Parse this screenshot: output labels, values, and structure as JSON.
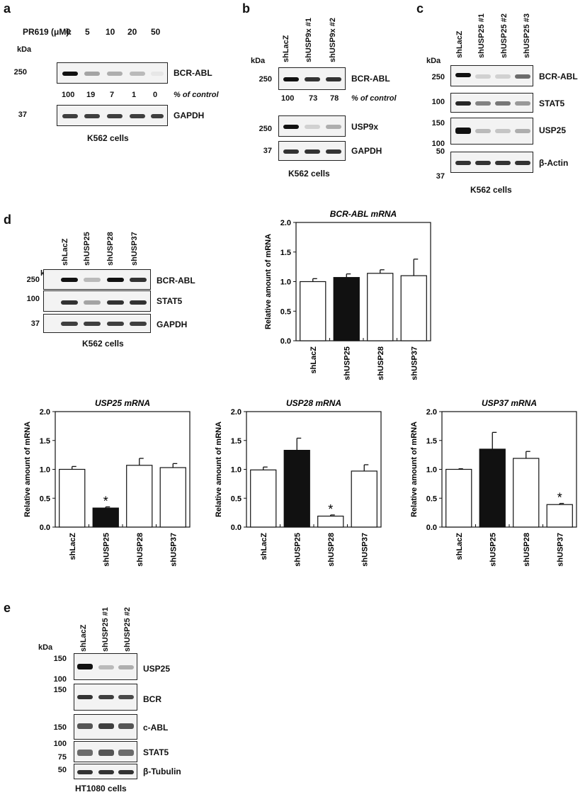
{
  "panels": {
    "a": {
      "letter": "a",
      "treatment_label": "PR619 (μM):",
      "doses": [
        "0",
        "5",
        "10",
        "20",
        "50"
      ],
      "kda": "kDa",
      "mw_top": "250",
      "mw_bottom": "37",
      "blot1": "BCR-ABL",
      "blot2": "GAPDH",
      "percent": [
        "100",
        "19",
        "7",
        "1",
        "0"
      ],
      "percent_label": "% of control",
      "band_intensity_top": [
        1.0,
        0.4,
        0.35,
        0.3,
        0.05
      ],
      "cells": "K562 cells"
    },
    "b": {
      "letter": "b",
      "lanes": [
        "shLacZ",
        "shUSP9x #1",
        "shUSP9x #2"
      ],
      "kda": "kDa",
      "blot1": "BCR-ABL",
      "blot2": "USP9x",
      "blot3": "GAPDH",
      "mw1": "250",
      "mw2": "250",
      "mw3": "37",
      "percent": [
        "100",
        "73",
        "78"
      ],
      "percent_label": "% of control",
      "cells": "K562 cells"
    },
    "c": {
      "letter": "c",
      "lanes": [
        "shLacZ",
        "shUSP25 #1",
        "shUSP25 #2",
        "shUSP25 #3"
      ],
      "kda": "kDa",
      "blot1": "BCR-ABL",
      "blot2": "STAT5",
      "blot3": "USP25",
      "blot4": "β-Actin",
      "mw1": "250",
      "mw2": "100",
      "mw3a": "150",
      "mw3b": "100",
      "mw4a": "50",
      "mw4b": "37",
      "cells": "K562 cells"
    },
    "d": {
      "letter": "d",
      "lanes": [
        "shLacZ",
        "shUSP25",
        "shUSP28",
        "shUSP37"
      ],
      "kda": "kDa",
      "blot1": "BCR-ABL",
      "blot2": "STAT5",
      "blot3": "GAPDH",
      "mw1": "250",
      "mw2": "100",
      "mw3": "37",
      "cells": "K562 cells"
    },
    "e": {
      "letter": "e",
      "lanes": [
        "shLacZ",
        "shUSP25 #1",
        "shUSP25 #2"
      ],
      "kda": "kDa",
      "blot1": "USP25",
      "blot2": "BCR",
      "blot3": "c-ABL",
      "blot4": "STAT5",
      "blot5": "β-Tubulin",
      "mw1a": "150",
      "mw1b": "100",
      "mw2": "150",
      "mw3": "150",
      "mw4a": "100",
      "mw4b": "75",
      "mw5": "50",
      "cells": "HT1080 cells"
    }
  },
  "chart_data": [
    {
      "type": "bar",
      "title": "BCR-ABL mRNA",
      "ylabel": "Relative amount of mRNA",
      "categories": [
        "shLacZ",
        "shUSP25",
        "shUSP28",
        "shUSP37"
      ],
      "values": [
        1.0,
        1.07,
        1.14,
        1.1
      ],
      "errors": [
        0.05,
        0.06,
        0.06,
        0.28
      ],
      "filled": [
        false,
        true,
        false,
        false
      ],
      "significant": [
        false,
        false,
        false,
        false
      ],
      "ylim": [
        0,
        2.0
      ],
      "yticks": [
        "0.0",
        "0.5",
        "1.0",
        "1.5",
        "2.0"
      ]
    },
    {
      "type": "bar",
      "title": "USP25 mRNA",
      "ylabel": "Relative amount of mRNA",
      "categories": [
        "shLacZ",
        "shUSP25",
        "shUSP28",
        "shUSP37"
      ],
      "values": [
        1.0,
        0.33,
        1.07,
        1.03
      ],
      "errors": [
        0.05,
        0.02,
        0.12,
        0.07
      ],
      "filled": [
        false,
        true,
        false,
        false
      ],
      "significant": [
        false,
        true,
        false,
        false
      ],
      "ylim": [
        0,
        2.0
      ],
      "yticks": [
        "0.0",
        "0.5",
        "1.0",
        "1.5",
        "2.0"
      ]
    },
    {
      "type": "bar",
      "title": "USP28 mRNA",
      "ylabel": "Relative amount of mRNA",
      "categories": [
        "shLacZ",
        "shUSP25",
        "shUSP28",
        "shUSP37"
      ],
      "values": [
        0.99,
        1.33,
        0.19,
        0.97
      ],
      "errors": [
        0.05,
        0.21,
        0.02,
        0.11
      ],
      "filled": [
        false,
        true,
        false,
        false
      ],
      "significant": [
        false,
        false,
        true,
        false
      ],
      "ylim": [
        0,
        2.0
      ],
      "yticks": [
        "0.0",
        "0.5",
        "1.0",
        "1.5",
        "2.0"
      ]
    },
    {
      "type": "bar",
      "title": "USP37 mRNA",
      "ylabel": "Relative amount of mRNA",
      "categories": [
        "shLacZ",
        "shUSP25",
        "shUSP28",
        "shUSP37"
      ],
      "values": [
        1.0,
        1.35,
        1.19,
        0.39
      ],
      "errors": [
        0.01,
        0.29,
        0.12,
        0.02
      ],
      "filled": [
        false,
        true,
        false,
        false
      ],
      "significant": [
        false,
        false,
        false,
        true
      ],
      "ylim": [
        0,
        2.0
      ],
      "yticks": [
        "0.0",
        "0.5",
        "1.0",
        "1.5",
        "2.0"
      ]
    }
  ],
  "sig_marker": "*"
}
